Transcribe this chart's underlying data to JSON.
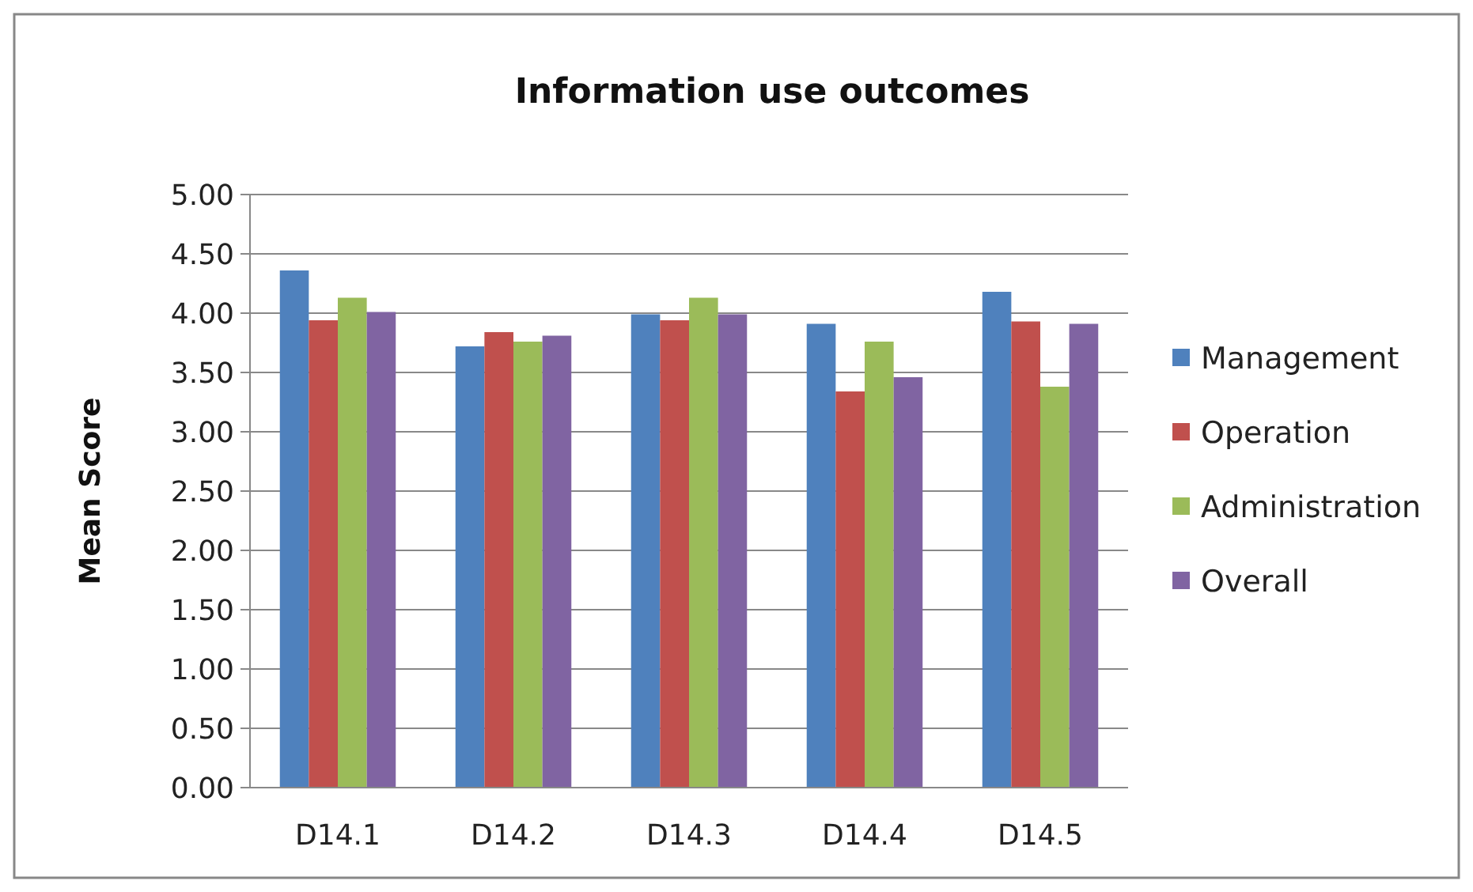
{
  "chart_data": {
    "type": "bar",
    "title": "Information use outcomes",
    "ylabel": "Mean Score",
    "categories": [
      "D14.1",
      "D14.2",
      "D14.3",
      "D14.4",
      "D14.5"
    ],
    "series": [
      {
        "name": "Management",
        "color": "#4f81bd",
        "values": [
          4.36,
          3.72,
          3.99,
          3.91,
          4.18
        ]
      },
      {
        "name": "Operation",
        "color": "#c0504d",
        "values": [
          3.94,
          3.84,
          3.94,
          3.34,
          3.93
        ]
      },
      {
        "name": "Administration",
        "color": "#9bbb59",
        "values": [
          4.13,
          3.76,
          4.13,
          3.76,
          3.38
        ]
      },
      {
        "name": "Overall",
        "color": "#8064a2",
        "values": [
          4.01,
          3.81,
          3.99,
          3.46,
          3.91
        ]
      }
    ],
    "ylim": [
      0,
      5
    ],
    "yticks": [
      {
        "value": 0,
        "label": "0.00"
      },
      {
        "value": 0.5,
        "label": "0.50"
      },
      {
        "value": 1,
        "label": "1.00"
      },
      {
        "value": 1.5,
        "label": "1.50"
      },
      {
        "value": 2,
        "label": "2.00"
      },
      {
        "value": 2.5,
        "label": "2.50"
      },
      {
        "value": 3,
        "label": "3.00"
      },
      {
        "value": 3.5,
        "label": "3.50"
      },
      {
        "value": 4,
        "label": "4.00"
      },
      {
        "value": 4.5,
        "label": "4.50"
      },
      {
        "value": 5,
        "label": "5.00"
      }
    ],
    "grid": "y",
    "legend": "right"
  }
}
